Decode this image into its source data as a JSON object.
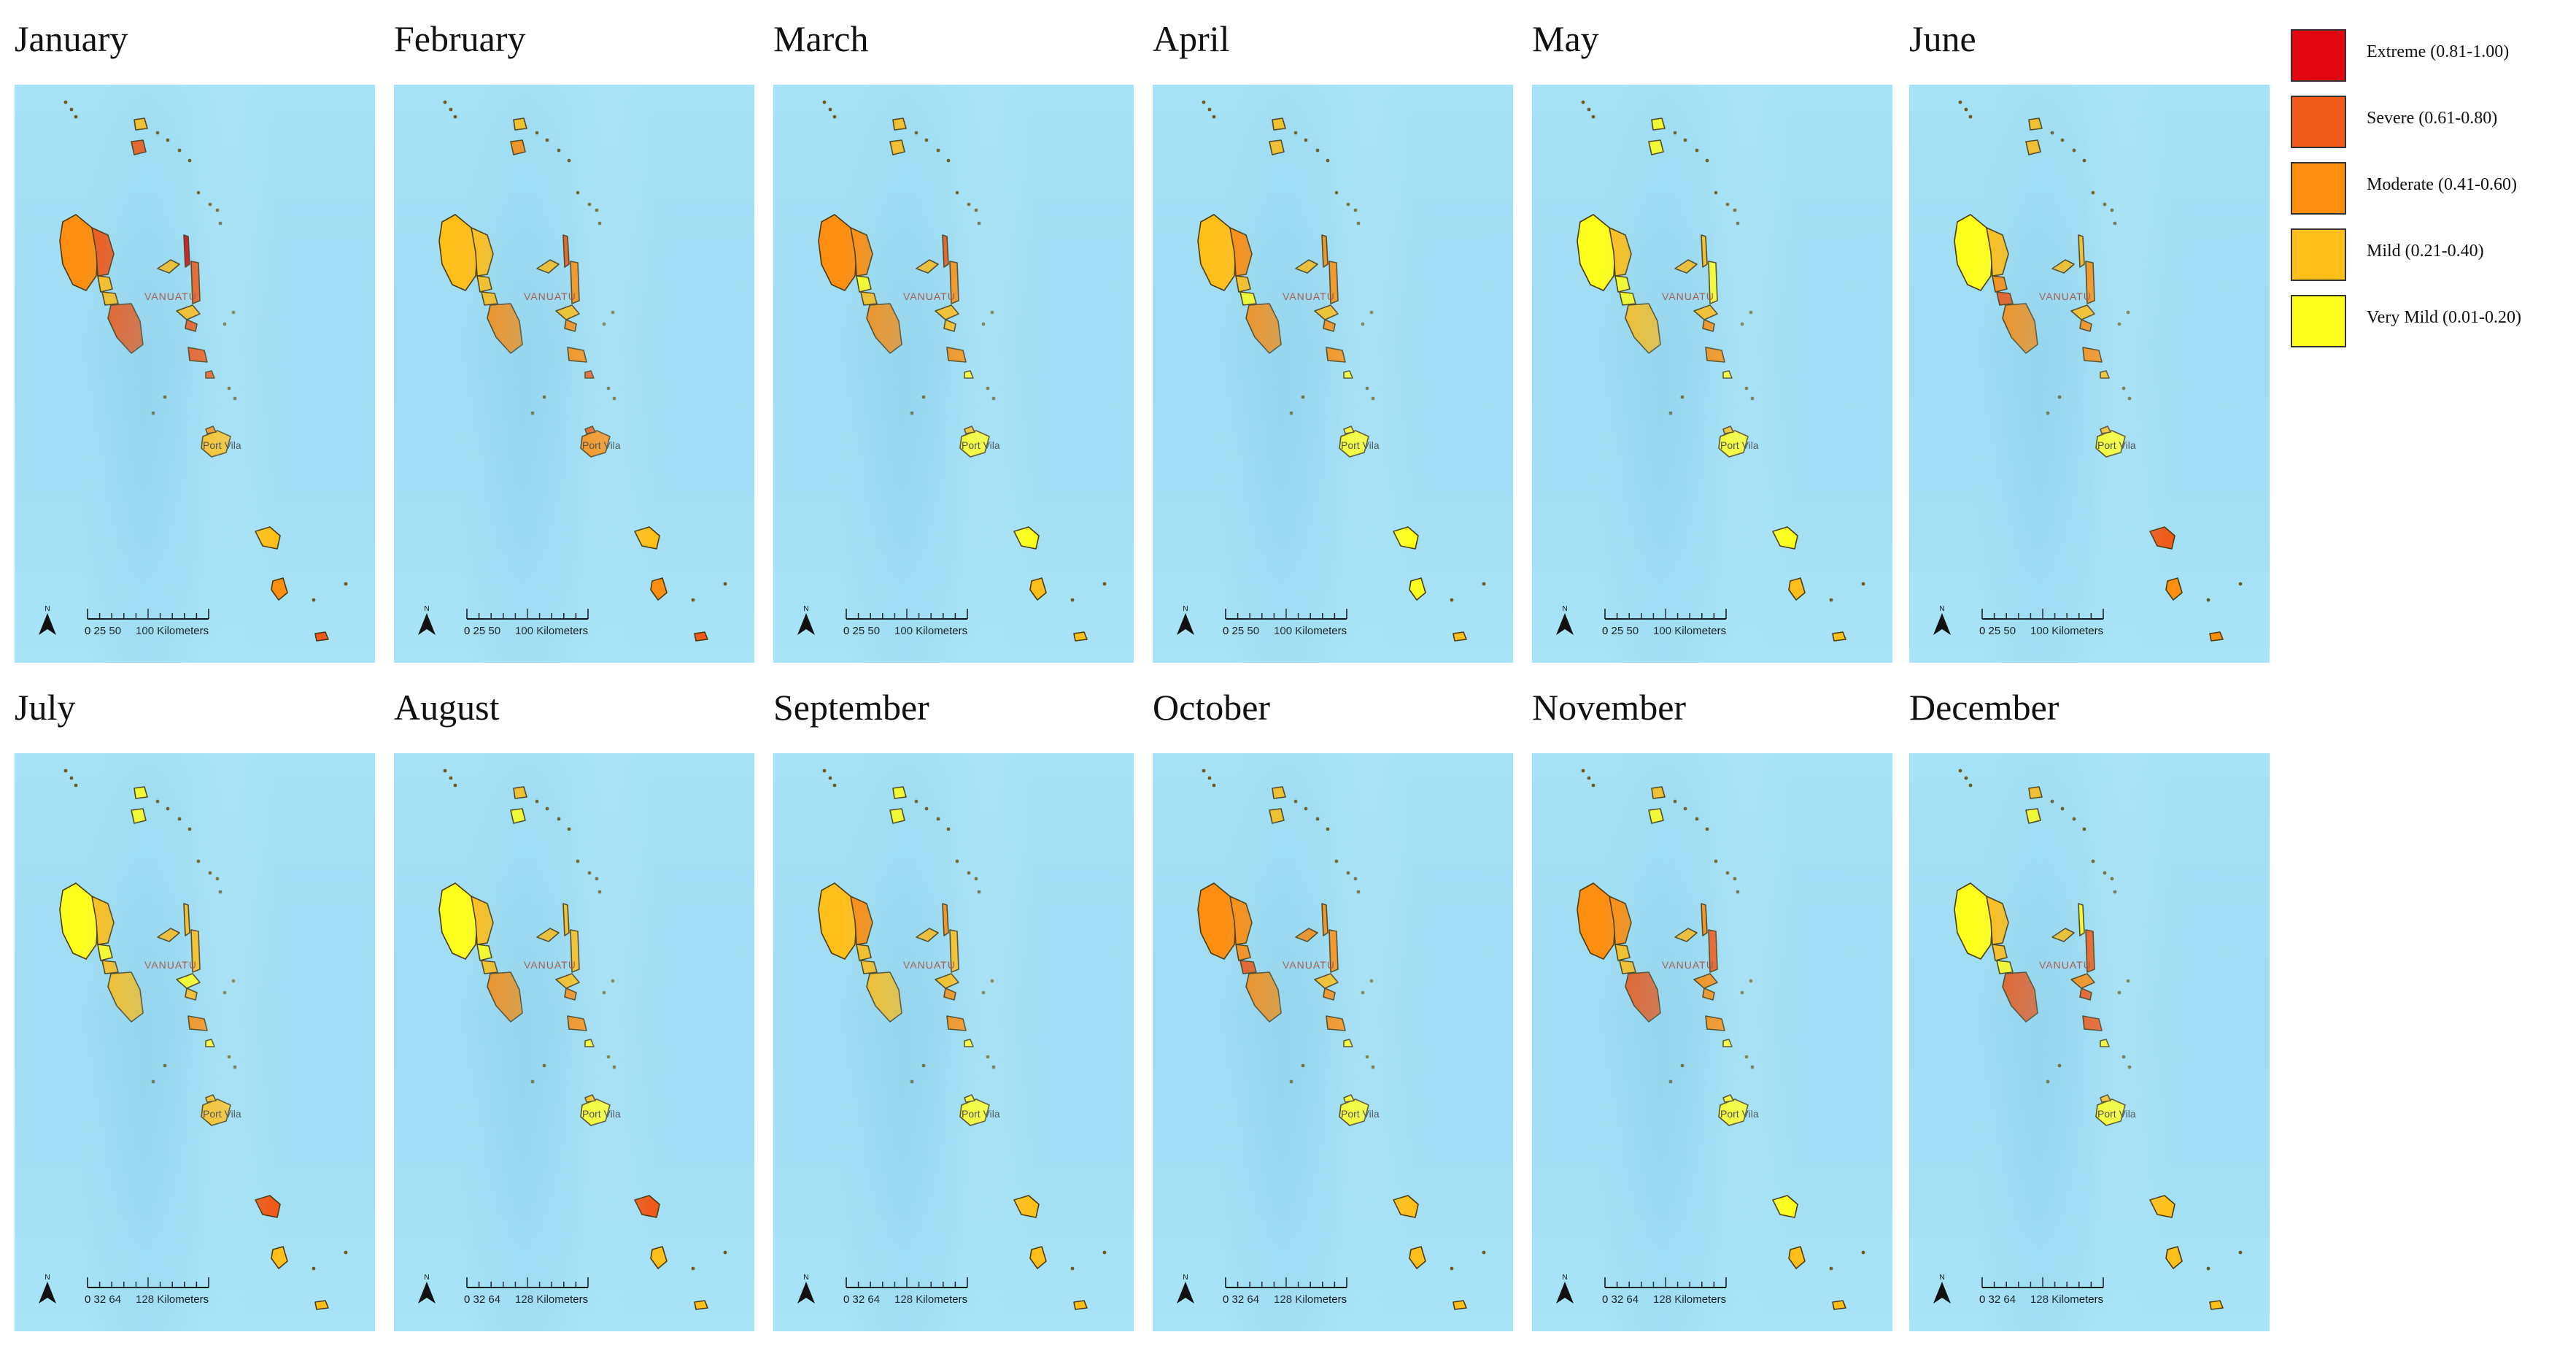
{
  "legend": {
    "items": [
      {
        "label": "Extreme (0.81-1.00)",
        "color": "#e30613"
      },
      {
        "label": "Severe (0.61-0.80)",
        "color": "#f05a1a"
      },
      {
        "label": "Moderate (0.41-0.60)",
        "color": "#fd8e10"
      },
      {
        "label": "Mild (0.21-0.40)",
        "color": "#ffbf1b"
      },
      {
        "label": "Very Mild (0.01-0.20)",
        "color": "#ffff1e"
      }
    ]
  },
  "map_labels": {
    "country": "VANUATU",
    "capital": "Port Vila"
  },
  "north_label": "N",
  "scales": [
    {
      "ticks": "0  25 50",
      "distance": "100 Kilometers"
    },
    {
      "ticks": "0   32 64",
      "distance": "128 Kilometers"
    }
  ],
  "months": [
    {
      "name": "January",
      "scale": 0,
      "levels": [
        2,
        3,
        1,
        1,
        4,
        1,
        3,
        1,
        3,
        1,
        3,
        3,
        3,
        3,
        1,
        2,
        1,
        2,
        3
      ]
    },
    {
      "name": "February",
      "scale": 0,
      "levels": [
        1,
        1,
        1,
        1,
        3,
        1,
        2,
        1,
        2,
        1,
        2,
        2,
        2,
        3,
        2,
        3,
        1,
        2,
        3
      ]
    },
    {
      "name": "March",
      "scale": 0,
      "levels": [
        2,
        2,
        0,
        1,
        3,
        1,
        1,
        1,
        2,
        1,
        2,
        1,
        2,
        0,
        0,
        1,
        0,
        1,
        1
      ]
    },
    {
      "name": "April",
      "scale": 0,
      "levels": [
        1,
        2,
        1,
        0,
        2,
        1,
        1,
        1,
        2,
        1,
        2,
        2,
        2,
        0,
        0,
        0,
        0,
        0,
        1
      ]
    },
    {
      "name": "May",
      "scale": 0,
      "levels": [
        0,
        1,
        0,
        0,
        1,
        1,
        0,
        0,
        0,
        1,
        1,
        2,
        2,
        0,
        0,
        1,
        0,
        1,
        1
      ]
    },
    {
      "name": "June",
      "scale": 0,
      "levels": [
        0,
        1,
        2,
        3,
        1,
        1,
        1,
        1,
        2,
        1,
        2,
        2,
        2,
        1,
        0,
        1,
        3,
        2,
        2
      ]
    },
    {
      "name": "July",
      "scale": 1,
      "levels": [
        0,
        1,
        0,
        1,
        1,
        1,
        0,
        0,
        1,
        0,
        1,
        1,
        2,
        0,
        1,
        1,
        3,
        1,
        1
      ]
    },
    {
      "name": "August",
      "scale": 1,
      "levels": [
        0,
        1,
        0,
        1,
        1,
        1,
        0,
        1,
        1,
        1,
        2,
        2,
        2,
        0,
        0,
        1,
        3,
        1,
        1
      ]
    },
    {
      "name": "September",
      "scale": 1,
      "levels": [
        1,
        2,
        1,
        1,
        2,
        1,
        0,
        0,
        1,
        1,
        1,
        2,
        2,
        0,
        0,
        0,
        1,
        1,
        1
      ]
    },
    {
      "name": "October",
      "scale": 1,
      "levels": [
        2,
        2,
        2,
        3,
        2,
        2,
        1,
        1,
        2,
        1,
        2,
        2,
        2,
        0,
        0,
        0,
        1,
        1,
        1
      ]
    },
    {
      "name": "November",
      "scale": 1,
      "levels": [
        2,
        2,
        1,
        1,
        2,
        1,
        0,
        1,
        3,
        2,
        3,
        2,
        2,
        0,
        0,
        0,
        0,
        1,
        1
      ]
    },
    {
      "name": "December",
      "scale": 1,
      "levels": [
        0,
        1,
        1,
        0,
        0,
        1,
        0,
        1,
        3,
        2,
        3,
        3,
        3,
        0,
        0,
        1,
        1,
        1,
        1
      ]
    }
  ]
}
